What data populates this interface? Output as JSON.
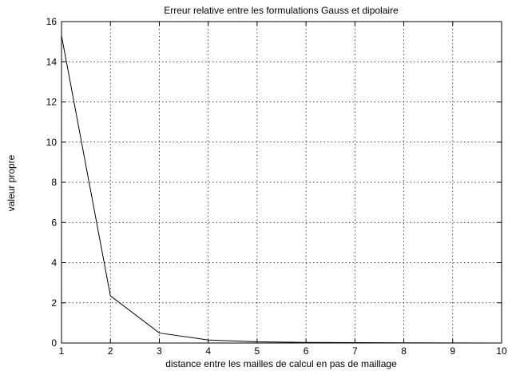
{
  "chart_data": {
    "type": "line",
    "title": "Erreur relative entre les formulations Gauss et dipolaire",
    "xlabel": "distance entre les mailles de calcul en pas de maillage",
    "ylabel": "valeur propre",
    "xlim": [
      1,
      10
    ],
    "ylim": [
      0,
      16
    ],
    "x_ticks": [
      1,
      2,
      3,
      4,
      5,
      6,
      7,
      8,
      9,
      10
    ],
    "y_ticks": [
      0,
      2,
      4,
      6,
      8,
      10,
      12,
      14,
      16
    ],
    "grid": true,
    "series": [
      {
        "x": [
          1,
          2,
          3,
          4,
          5,
          6,
          7,
          8,
          9,
          10
        ],
        "y": [
          15.3,
          2.35,
          0.5,
          0.15,
          0.06,
          0.03,
          0.02,
          0.01,
          0.005,
          0.0
        ],
        "color": "#000000"
      }
    ]
  }
}
